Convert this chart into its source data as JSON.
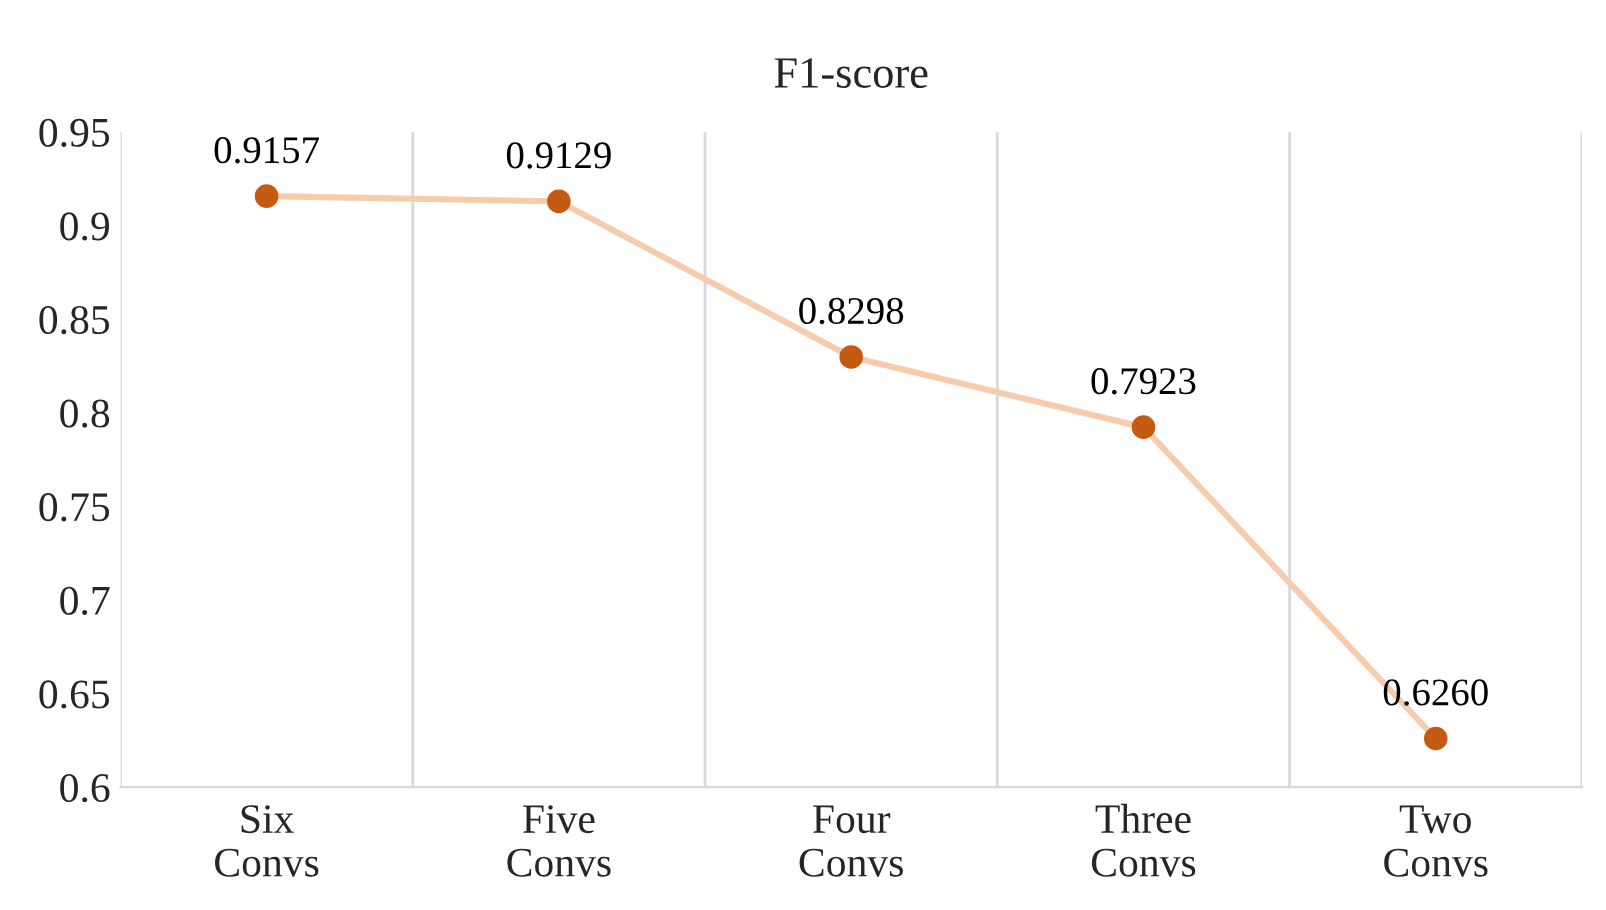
{
  "chart_data": {
    "type": "line",
    "title": "F1-score",
    "categories": [
      "Six\nConvs",
      "Five\nConvs",
      "Four\nConvs",
      "Three\nConvs",
      "Two\nConvs"
    ],
    "series": [
      {
        "color": "#f8cbad",
        "colors": [
          "#c55a11",
          "#c55a11",
          "#c55a11",
          "#c55a11",
          "#c55a11"
        ],
        "values": [
          0.9157,
          0.9129,
          0.8298,
          0.7923,
          0.626
        ],
        "value_labels": [
          "0.9157",
          "0.9129",
          "0.8298",
          "0.7923",
          "0.6260"
        ]
      }
    ],
    "ylim": [
      0.6,
      0.95
    ],
    "yticks": [
      0.6,
      0.65,
      0.7,
      0.75,
      0.8,
      0.85,
      0.9,
      0.95
    ],
    "grid": "x",
    "marker": "circle",
    "line_style": "solid",
    "legend": false
  }
}
